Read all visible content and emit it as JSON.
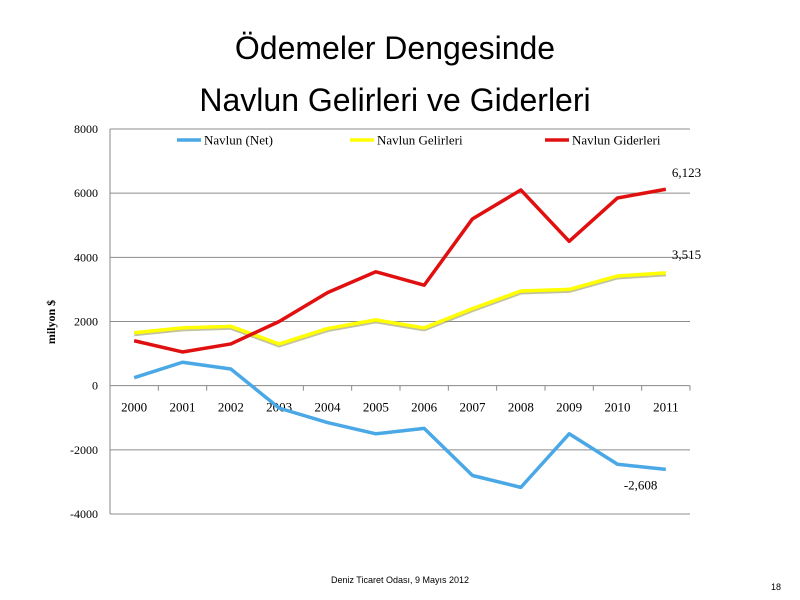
{
  "slide": {
    "title_line1": "Ödemeler Dengesinde",
    "title_line2": "Navlun Gelirleri ve Giderleri",
    "footer": "Deniz Ticaret Odası, 9 Mayıs 2012",
    "page_number": "18"
  },
  "chart_data": {
    "type": "line",
    "x": [
      "2000",
      "2001",
      "2002",
      "2003",
      "2004",
      "2005",
      "2006",
      "2007",
      "2008",
      "2009",
      "2010",
      "2011"
    ],
    "ylabel": "milyon $",
    "ylim": [
      -4000,
      8000
    ],
    "yticks": [
      8000,
      6000,
      4000,
      2000,
      0,
      -2000,
      -4000
    ],
    "grid": true,
    "legend_position": "top",
    "series": [
      {
        "name": "Navlun (Net)",
        "color": "#4aa8e6",
        "values": [
          250,
          730,
          520,
          -700,
          -1150,
          -1500,
          -1330,
          -2800,
          -3170,
          -1500,
          -2450,
          -2608
        ],
        "end_label": "-2,608"
      },
      {
        "name": "Navlun Gelirleri",
        "color": "#ffff00",
        "values": [
          1650,
          1800,
          1850,
          1300,
          1780,
          2050,
          1800,
          2400,
          2950,
          3000,
          3420,
          3515
        ],
        "end_label": "3,515"
      },
      {
        "name": "Navlun Giderleri",
        "color": "#e01010",
        "values": [
          1400,
          1050,
          1300,
          2000,
          2900,
          3550,
          3130,
          5200,
          6100,
          4500,
          5850,
          6123
        ],
        "end_label": "6,123"
      }
    ]
  }
}
